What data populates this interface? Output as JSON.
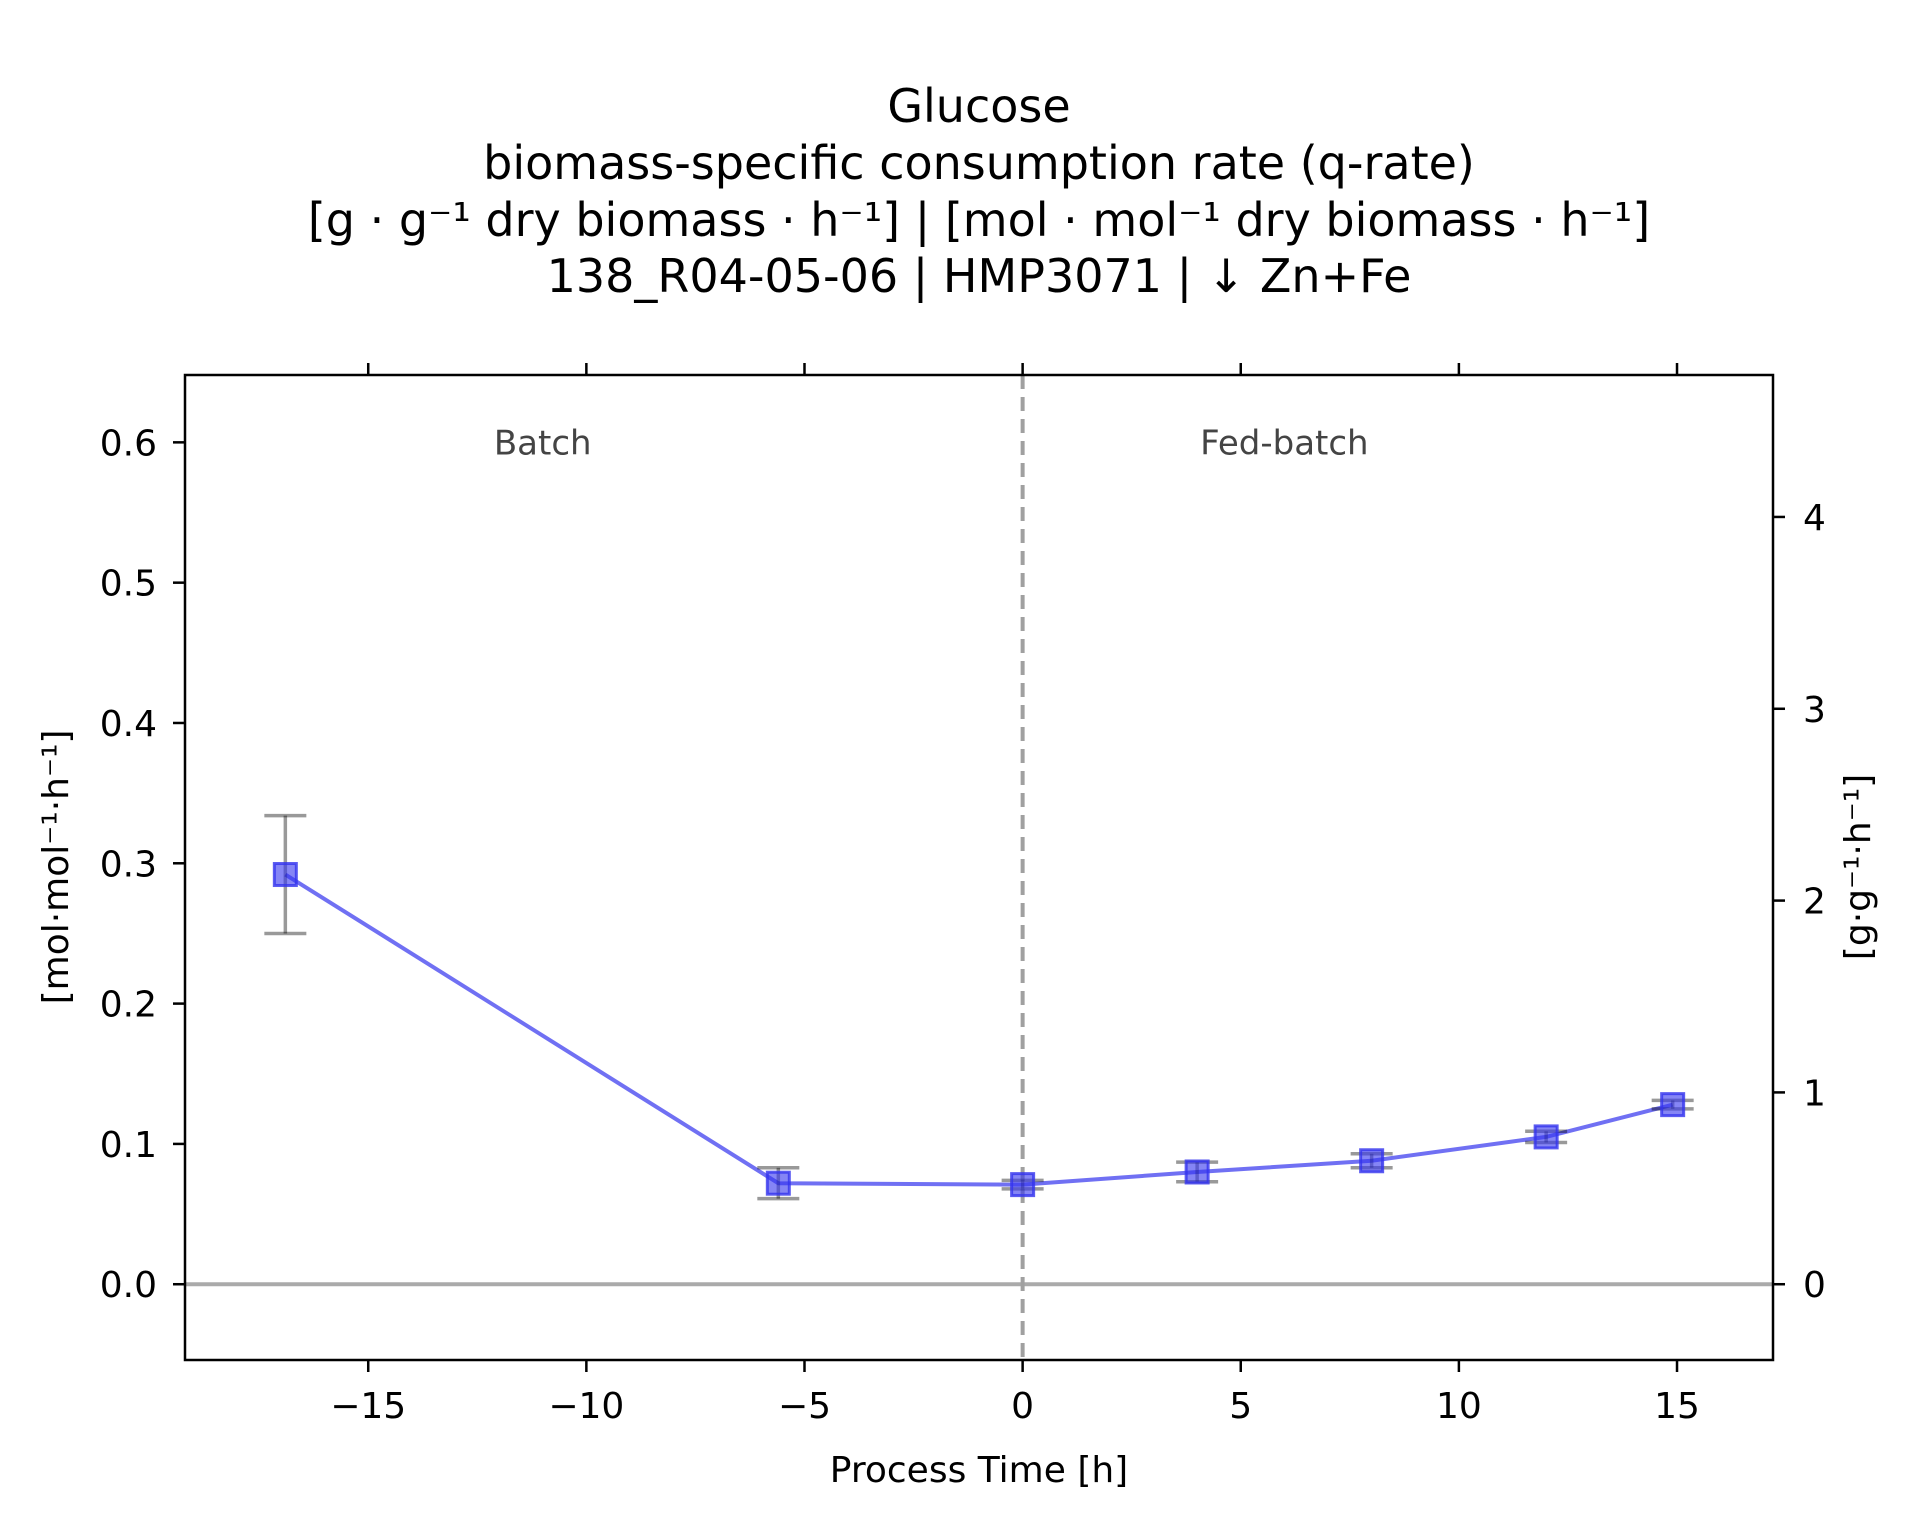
{
  "chart_data": {
    "type": "line",
    "title_lines": [
      "Glucose",
      "biomass-specific consumption rate (q-rate)",
      "[g · g⁻¹ dry biomass · h⁻¹]    |    [mol · mol⁻¹ dry biomass · h⁻¹]",
      "138_R04-05-06  |  HMP3071  |  ↓ Zn+Fe"
    ],
    "xlabel": "Process Time [h]",
    "ylabel_left": "[mol·mol⁻¹·h⁻¹]",
    "ylabel_right": "[g·g⁻¹·h⁻¹]",
    "xlim": [
      -19.2,
      17.2
    ],
    "ylim_left": [
      -0.054,
      0.648
    ],
    "ylim_right": [
      -0.395,
      4.74
    ],
    "xticks": [
      -15,
      -10,
      -5,
      0,
      5,
      10,
      15
    ],
    "xtick_labels": [
      "−15",
      "−10",
      "−5",
      "0",
      "5",
      "10",
      "15"
    ],
    "yticks_left": [
      0.0,
      0.1,
      0.2,
      0.3,
      0.4,
      0.5,
      0.6
    ],
    "ytick_labels_left": [
      "0.0",
      "0.1",
      "0.2",
      "0.3",
      "0.4",
      "0.5",
      "0.6"
    ],
    "yticks_right": [
      0,
      1,
      2,
      3,
      4
    ],
    "ytick_labels_right": [
      "0",
      "1",
      "2",
      "3",
      "4"
    ],
    "phase_labels": [
      {
        "text": "Batch",
        "x": -11.0,
        "y": 0.6
      },
      {
        "text": "Fed-batch",
        "x": 6.0,
        "y": 0.6
      }
    ],
    "phase_boundary_x": 0,
    "zero_line_y": 0,
    "series": [
      {
        "x": [
          -16.9,
          -5.6,
          0.0,
          4.0,
          8.0,
          12.0,
          14.9
        ],
        "y": [
          0.292,
          0.072,
          0.071,
          0.08,
          0.088,
          0.105,
          0.128
        ],
        "yerr": [
          0.042,
          0.011,
          0.003,
          0.007,
          0.005,
          0.004,
          0.003
        ],
        "color": "#3333ee",
        "marker": "square"
      }
    ],
    "grid": false,
    "legend": "none"
  }
}
